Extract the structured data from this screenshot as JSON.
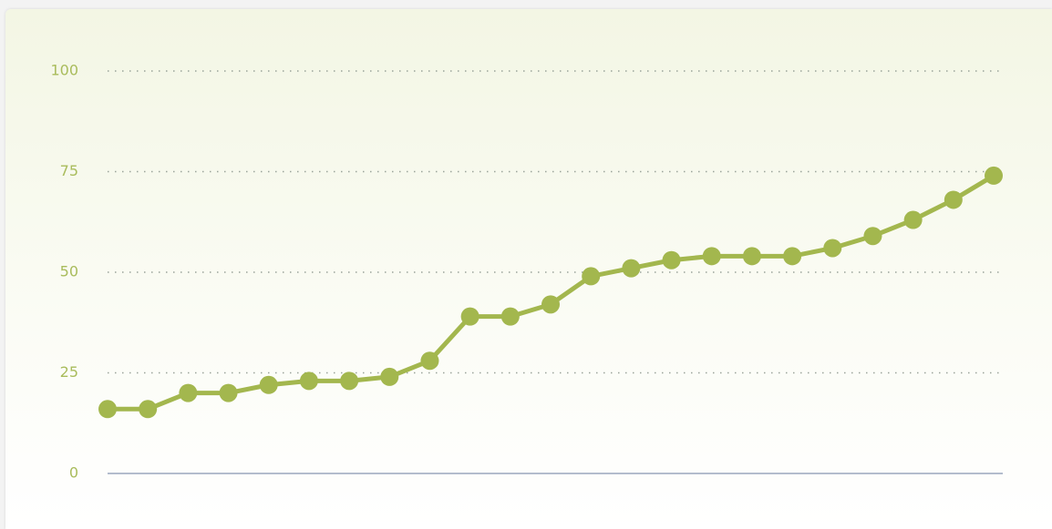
{
  "chart_data": {
    "type": "line",
    "categories": [
      null,
      null,
      null,
      null,
      null,
      null,
      null,
      null,
      null,
      null,
      null,
      null,
      null,
      null,
      null,
      null,
      null,
      null,
      null,
      null,
      null,
      null,
      null
    ],
    "series": [
      {
        "color": "#a3b74e",
        "values": [
          16,
          16,
          20,
          20,
          22,
          23,
          23,
          24,
          28,
          39,
          39,
          42,
          49,
          51,
          53,
          54,
          54,
          54,
          56,
          59,
          63,
          68,
          74
        ]
      }
    ],
    "ylim": [
      0,
      100
    ],
    "yticks": [
      0,
      25,
      50,
      75,
      100
    ],
    "grid": true
  }
}
